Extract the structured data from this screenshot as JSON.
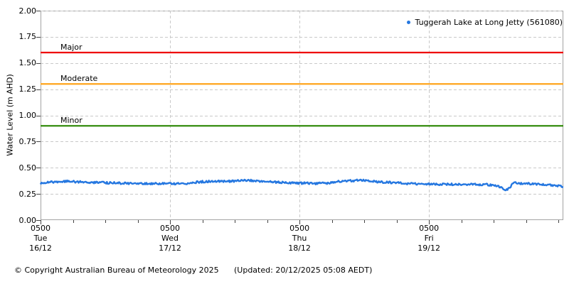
{
  "legend": {
    "label": "Tuggerah Lake at Long Jetty (561080)",
    "marker": "dot-icon"
  },
  "y_axis": {
    "title": "Water Level (m AHD)",
    "tick_labels": [
      "2.00",
      "1.75",
      "1.50",
      "1.25",
      "1.00",
      "0.75",
      "0.50",
      "0.25",
      "0.00"
    ]
  },
  "x_axis": {
    "major_ticks": [
      {
        "hour": 0,
        "time": "0500",
        "day": "Tue",
        "date": "16/12"
      },
      {
        "hour": 24,
        "time": "0500",
        "day": "Wed",
        "date": "17/12"
      },
      {
        "hour": 48,
        "time": "0500",
        "day": "Thu",
        "date": "18/12"
      },
      {
        "hour": 72,
        "time": "0500",
        "day": "Fri",
        "date": "19/12"
      }
    ],
    "minor_tick_interval_hours": 6
  },
  "footer": {
    "copyright": "© Copyright Australian Bureau of Meteorology 2025",
    "updated": "(Updated: 20/12/2025 05:08 AEDT)"
  },
  "colors": {
    "series_blue": "#2577e0",
    "major_red": "#ee0000",
    "moderate_orange": "#ffa41c",
    "minor_green": "#348c0e",
    "grid": "#c9c9c9",
    "frame": "#a3a3a3",
    "tick": "#444444"
  },
  "chart_data": {
    "type": "line",
    "title": "",
    "xlabel": "",
    "ylabel": "Water Level (m AHD)",
    "ylim": [
      0,
      2
    ],
    "y_tick_step": 0.25,
    "xlim_hours": [
      0,
      96.9
    ],
    "x_origin": "Tue 16/12 0500",
    "grid": true,
    "legend_position": "top-right",
    "thresholds": [
      {
        "label": "Major",
        "value": 1.6,
        "color_key": "major_red"
      },
      {
        "label": "Moderate",
        "value": 1.3,
        "color_key": "moderate_orange"
      },
      {
        "label": "Minor",
        "value": 0.9,
        "color_key": "minor_green"
      }
    ],
    "series": [
      {
        "name": "Tuggerah Lake at Long Jetty (561080)",
        "color_key": "series_blue",
        "points_hours_value": [
          [
            0,
            0.352
          ],
          [
            1.5,
            0.36
          ],
          [
            3,
            0.366
          ],
          [
            4.5,
            0.37
          ],
          [
            6,
            0.368
          ],
          [
            8,
            0.363
          ],
          [
            10,
            0.36
          ],
          [
            12,
            0.357
          ],
          [
            14,
            0.354
          ],
          [
            16,
            0.351
          ],
          [
            18,
            0.35
          ],
          [
            20,
            0.35
          ],
          [
            22,
            0.348
          ],
          [
            24,
            0.348
          ],
          [
            26,
            0.35
          ],
          [
            27.5,
            0.353
          ],
          [
            29,
            0.362
          ],
          [
            30.5,
            0.368
          ],
          [
            32,
            0.37
          ],
          [
            34,
            0.37
          ],
          [
            36,
            0.372
          ],
          [
            37.5,
            0.378
          ],
          [
            38.5,
            0.38
          ],
          [
            40,
            0.373
          ],
          [
            42,
            0.368
          ],
          [
            44,
            0.362
          ],
          [
            46,
            0.357
          ],
          [
            48,
            0.353
          ],
          [
            50,
            0.351
          ],
          [
            52,
            0.35
          ],
          [
            53.5,
            0.356
          ],
          [
            55,
            0.368
          ],
          [
            56.5,
            0.371
          ],
          [
            58,
            0.377
          ],
          [
            59,
            0.38
          ],
          [
            60,
            0.377
          ],
          [
            61.5,
            0.37
          ],
          [
            63,
            0.365
          ],
          [
            65,
            0.358
          ],
          [
            67,
            0.352
          ],
          [
            69,
            0.348
          ],
          [
            71,
            0.345
          ],
          [
            73,
            0.342
          ],
          [
            75,
            0.341
          ],
          [
            77,
            0.342
          ],
          [
            79,
            0.34
          ],
          [
            81,
            0.341
          ],
          [
            83,
            0.338
          ],
          [
            84.5,
            0.33
          ],
          [
            85.5,
            0.305
          ],
          [
            86.2,
            0.287
          ],
          [
            86.8,
            0.3
          ],
          [
            87.3,
            0.33
          ],
          [
            87.8,
            0.368
          ],
          [
            88.3,
            0.352
          ],
          [
            89,
            0.35
          ],
          [
            90.5,
            0.347
          ],
          [
            92,
            0.342
          ],
          [
            93.5,
            0.337
          ],
          [
            95,
            0.33
          ],
          [
            96.9,
            0.323
          ]
        ]
      }
    ]
  }
}
